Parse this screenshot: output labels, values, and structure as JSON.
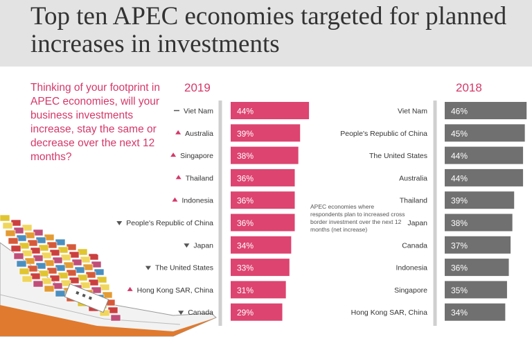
{
  "title": "Top ten APEC economies targeted for planned increases in investments",
  "question": "Thinking of your footprint in APEC economies, will your business investments increase, stay the same or decrease over the next 12 months?",
  "annotation": "APEC economies where respondents plan to increased cross border investment over the next 12 months (net increase)",
  "colors": {
    "accent": "#d4386a",
    "bar_2019": "#dd4470",
    "bar_2018": "#707070",
    "header_bg": "#e3e3e3"
  },
  "chart_data": [
    {
      "type": "bar",
      "orientation": "horizontal",
      "title": "2019",
      "categories": [
        "Viet Nam",
        "Australia",
        "Singapore",
        "Thailand",
        "Indonesia",
        "People's Republic of China",
        "Japan",
        "The United States",
        "Hong Kong SAR, China",
        "Canada"
      ],
      "values": [
        44,
        39,
        38,
        36,
        36,
        36,
        34,
        33,
        31,
        29
      ],
      "value_labels": [
        "44%",
        "39%",
        "38%",
        "36%",
        "36%",
        "36%",
        "34%",
        "33%",
        "31%",
        "29%"
      ],
      "rank_change": [
        "same",
        "up",
        "up",
        "up",
        "up",
        "down",
        "down",
        "down",
        "up",
        "down"
      ],
      "color": "#dd4470"
    },
    {
      "type": "bar",
      "orientation": "horizontal",
      "title": "2018",
      "categories": [
        "Viet Nam",
        "People's Republic of China",
        "The United States",
        "Australia",
        "Thailand",
        "Japan",
        "Canada",
        "Indonesia",
        "Singapore",
        "Hong Kong SAR, China"
      ],
      "values": [
        46,
        45,
        44,
        44,
        39,
        38,
        37,
        36,
        35,
        34
      ],
      "value_labels": [
        "46%",
        "45%",
        "44%",
        "44%",
        "39%",
        "38%",
        "37%",
        "36%",
        "35%",
        "34%"
      ],
      "color": "#707070"
    }
  ]
}
